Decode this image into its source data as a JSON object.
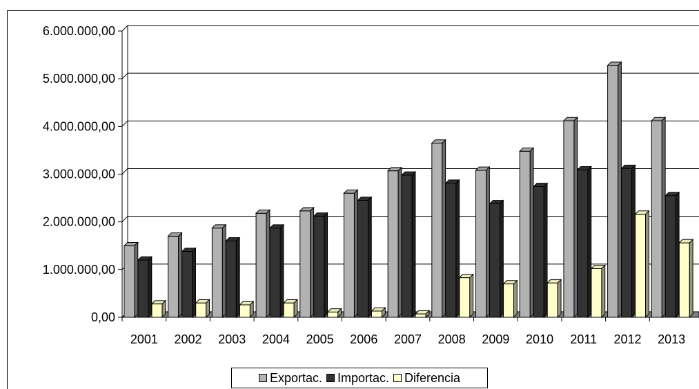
{
  "chart_data": {
    "type": "bar",
    "categories": [
      "2001",
      "2002",
      "2003",
      "2004",
      "2005",
      "2006",
      "2007",
      "2008",
      "2009",
      "2010",
      "2011",
      "2012",
      "2013"
    ],
    "series": [
      {
        "name": "Exportac.",
        "color": "#b2b2b2",
        "values": [
          1500000,
          1700000,
          1870000,
          2180000,
          2230000,
          2600000,
          3070000,
          3650000,
          3080000,
          3480000,
          4120000,
          5280000,
          4120000
        ]
      },
      {
        "name": "Importac.",
        "color": "#333333",
        "values": [
          1200000,
          1380000,
          1600000,
          1870000,
          2120000,
          2450000,
          2980000,
          2810000,
          2380000,
          2740000,
          3090000,
          3120000,
          2550000
        ]
      },
      {
        "name": "Diferencia",
        "color": "#ffffcc",
        "values": [
          280000,
          300000,
          260000,
          300000,
          110000,
          130000,
          70000,
          830000,
          700000,
          720000,
          1020000,
          2160000,
          1560000
        ]
      }
    ],
    "ylim": [
      0,
      6000000
    ],
    "yticks": [
      "0,00",
      "1.000.000,00",
      "2.000.000,00",
      "3.000.000,00",
      "4.000.000,00",
      "5.000.000,00",
      "6.000.000,00"
    ],
    "grid": true,
    "legend_position": "bottom"
  }
}
